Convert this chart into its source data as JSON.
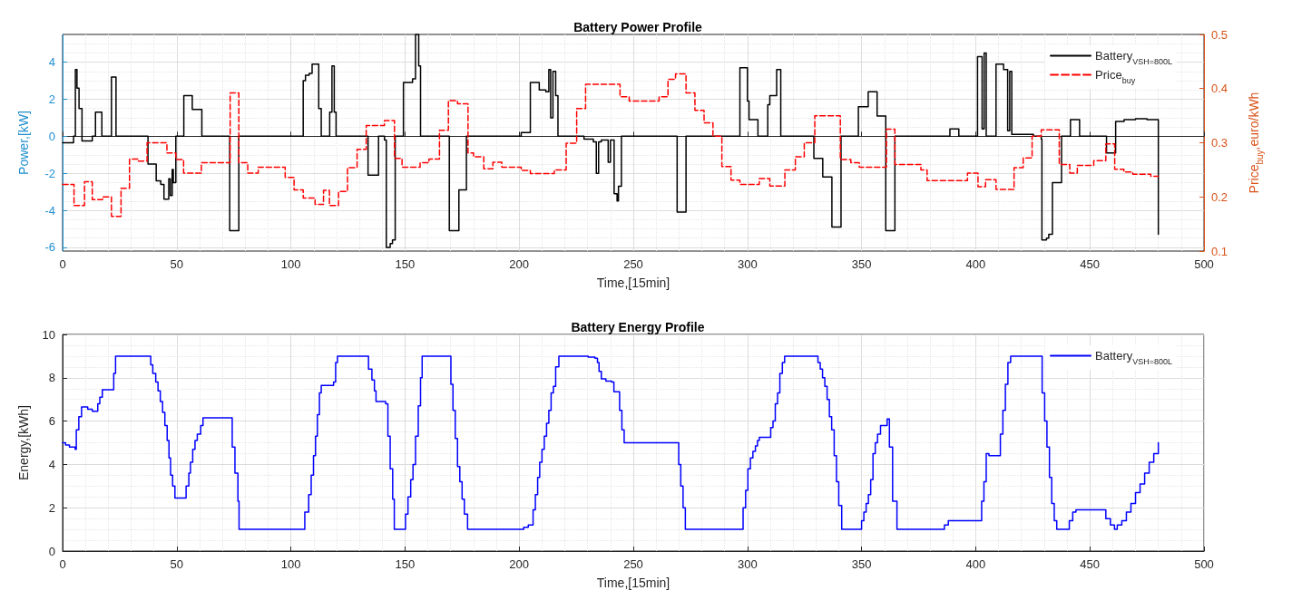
{
  "chart_data": [
    {
      "type": "step",
      "title": "Battery Power Profile",
      "xlabel": "Time,[15min]",
      "ylabel": "Power,[kW]",
      "y2label": "Price$_{buy}$,euro/kWh",
      "xlim": [
        0,
        500
      ],
      "xticks": [
        0,
        50,
        100,
        150,
        200,
        250,
        300,
        350,
        400,
        450,
        500
      ],
      "ylim": [
        -6.2,
        5.5
      ],
      "yticks": [
        -6,
        -4,
        -2,
        0,
        2,
        4
      ],
      "y2lim": [
        0.1,
        0.5
      ],
      "y2ticks": [
        0.1,
        0.2,
        0.3,
        0.4,
        0.5
      ],
      "grid": true,
      "legend": "top right",
      "marker": "none",
      "series": [
        {
          "name": "Battery$_{V}$$_{SH}$$_{=800L}$",
          "color": "#000000",
          "line_style": "solid",
          "x": [
            0,
            4.8,
            5.6,
            6.3,
            7.2,
            8.5,
            13,
            14.4,
            17.2,
            21.4,
            23.4,
            37.4,
            41,
            43,
            44.4,
            46.5,
            47.2,
            48,
            48.5,
            49.6,
            53.1,
            56.8,
            61,
            73.2,
            77.2,
            105.4,
            106.4,
            108,
            109.3,
            112.2,
            113.3,
            117,
            118,
            119,
            119.8,
            133.8,
            138.4,
            141,
            141.8,
            143.5,
            144.5,
            145.7,
            149.3,
            153.3,
            154.6,
            156,
            156.8,
            169.4,
            173.6,
            176.9,
            200.9,
            204.9,
            208.8,
            211.7,
            213,
            213.8,
            214.8,
            216,
            217,
            228.4,
            232.5,
            233.8,
            234.8,
            236,
            239,
            240,
            241.6,
            242.9,
            243.5,
            244.8,
            269.2,
            273.1,
            296.7,
            300,
            300.7,
            304.6,
            308.9,
            309.8,
            312.8,
            314.6,
            329.1,
            333,
            337,
            341,
            348.6,
            352.9,
            356.8,
            360.6,
            364.6,
            388.7,
            392.6,
            400.8,
            402.8,
            403.7,
            404.6,
            408.9,
            412.2,
            414,
            414.9,
            415.8,
            425.3,
            428.7,
            429,
            431,
            432,
            433.6,
            437.6,
            441.5,
            445.5,
            457.3,
            461.3,
            465,
            470,
            475,
            480
          ],
          "values": [
            -0.35,
            0,
            3.6,
            2.6,
            1.5,
            -0.25,
            0,
            1.3,
            0,
            3.2,
            0,
            -1.5,
            -2.4,
            -2.6,
            -3.4,
            -2.3,
            -3.2,
            -1.8,
            -2.5,
            0,
            2.2,
            1.45,
            0,
            -5.1,
            0,
            3.0,
            3.3,
            3.4,
            3.9,
            1.5,
            0,
            1.3,
            3.8,
            1.3,
            0,
            -2.1,
            0,
            -0.2,
            -6.0,
            -5.8,
            -5.6,
            0,
            2.9,
            3.1,
            5.5,
            3.8,
            0,
            -5.1,
            -2.9,
            0,
            0.2,
            2.9,
            2.5,
            2.4,
            3.6,
            1.0,
            3.5,
            2.2,
            0,
            -0.15,
            -0.3,
            -2.0,
            -0.3,
            -0.2,
            -1.4,
            -0.2,
            -3.1,
            -3.5,
            -2.7,
            0,
            -4.1,
            0,
            3.7,
            1.9,
            0.9,
            0,
            1.7,
            2.2,
            3.6,
            0,
            -1.2,
            -2.2,
            -4.9,
            0,
            1.6,
            2.4,
            1.1,
            -5.1,
            0,
            0.4,
            0,
            4.3,
            0.4,
            4.5,
            0,
            3.9,
            3.6,
            0.3,
            3.5,
            0.1,
            0,
            -0.15,
            -5.6,
            -5.5,
            -5.3,
            -2.5,
            0,
            0.9,
            0,
            -0.9,
            0.8,
            0.9,
            0.95,
            0.9,
            -5.3
          ]
        },
        {
          "name": "Price$_{buy}$",
          "color": "#ff0000",
          "line_style": "dashed",
          "axis": "y2",
          "x": [
            0,
            5,
            9.6,
            13,
            17.5,
            21.4,
            25.6,
            29.3,
            33,
            37,
            45.7,
            49.6,
            53,
            60.8,
            73.4,
            77.2,
            81.1,
            85.7,
            97.5,
            101.4,
            105.4,
            110.6,
            114.3,
            116.9,
            120.9,
            124.8,
            129,
            133,
            141,
            145.4,
            148.7,
            156.6,
            160.5,
            165.1,
            169,
            173,
            177.6,
            180,
            184.5,
            188.5,
            192.4,
            200.9,
            204.9,
            215.4,
            220.6,
            225.2,
            229.1,
            244.2,
            248.2,
            261.3,
            265.2,
            268.5,
            273.1,
            277,
            281,
            284.9,
            288.8,
            292.8,
            296.7,
            305.2,
            309.8,
            316.4,
            321,
            324.9,
            329.5,
            340.7,
            345.3,
            349,
            360.9,
            364.6,
            376,
            378.7,
            396.4,
            401,
            404.3,
            408.9,
            416.8,
            420.8,
            424.7,
            428.7,
            436.6,
            441.2,
            444.5,
            451.7,
            457,
            460.9,
            464.9,
            468.8,
            476.7,
            480
          ],
          "values": [
            0.223,
            0.184,
            0.228,
            0.195,
            0.2,
            0.164,
            0.216,
            0.27,
            0.266,
            0.3,
            0.281,
            0.269,
            0.244,
            0.263,
            0.392,
            0.263,
            0.244,
            0.255,
            0.236,
            0.213,
            0.198,
            0.186,
            0.212,
            0.184,
            0.21,
            0.254,
            0.288,
            0.332,
            0.341,
            0.271,
            0.255,
            0.263,
            0.27,
            0.323,
            0.378,
            0.372,
            0.281,
            0.274,
            0.252,
            0.264,
            0.255,
            0.249,
            0.243,
            0.25,
            0.299,
            0.363,
            0.408,
            0.385,
            0.377,
            0.385,
            0.417,
            0.427,
            0.392,
            0.36,
            0.337,
            0.312,
            0.256,
            0.231,
            0.223,
            0.234,
            0.22,
            0.25,
            0.274,
            0.3,
            0.35,
            0.269,
            0.263,
            0.255,
            0.325,
            0.26,
            0.25,
            0.23,
            0.244,
            0.219,
            0.232,
            0.214,
            0.254,
            0.272,
            0.312,
            0.324,
            0.26,
            0.244,
            0.258,
            0.267,
            0.298,
            0.251,
            0.246,
            0.242,
            0.238,
            0.238
          ]
        }
      ]
    },
    {
      "type": "step",
      "title": "Battery Energy Profile",
      "xlabel": "Time,[15min]",
      "ylabel": "Energy,[kWh]",
      "xlim": [
        0,
        500
      ],
      "xticks": [
        0,
        50,
        100,
        150,
        200,
        250,
        300,
        350,
        400,
        450,
        500
      ],
      "ylim": [
        0,
        10
      ],
      "yticks": [
        0,
        2,
        4,
        6,
        8,
        10
      ],
      "grid": true,
      "legend": "top right",
      "marker": "none",
      "series": [
        {
          "name": "Battery$_{V}$$_{SH}$$_{=800L}$",
          "color": "#0000ff",
          "line_style": "solid",
          "x": [
            0,
            1.3,
            3,
            5.5,
            6,
            7.1,
            8.3,
            11,
            13,
            15.4,
            16.3,
            17.4,
            22.4,
            23.2,
            38.6,
            39.5,
            40.8,
            41.8,
            42.8,
            43.8,
            44.8,
            45.8,
            46.6,
            47.3,
            48.2,
            49.2,
            54.1,
            55.3,
            56,
            57,
            58,
            59,
            60.5,
            61.5,
            74.3,
            75.5,
            76.8,
            77.3,
            106.1,
            107.8,
            108.9,
            109.9,
            110.8,
            111.6,
            112.5,
            113.3,
            118.7,
            119.6,
            120.4,
            134,
            135.5,
            136.6,
            137.3,
            141.5,
            142.5,
            143.5,
            144.6,
            145.3,
            150.2,
            151.3,
            152.5,
            153.5,
            154.6,
            155.8,
            156.8,
            157.5,
            170.1,
            171,
            172,
            173,
            174,
            175,
            176,
            177.4,
            202,
            204,
            206.1,
            207.1,
            208.1,
            209,
            210,
            211,
            212,
            213,
            214,
            215,
            216,
            217.4,
            230.2,
            233.2,
            234.3,
            235,
            236,
            238,
            240.5,
            241.5,
            244,
            245,
            246,
            269.9,
            270.8,
            271.8,
            272.8,
            298.1,
            299.2,
            300.2,
            301.3,
            302.4,
            303.5,
            304.4,
            305.2,
            310.2,
            311.2,
            312.2,
            313.2,
            314.2,
            315.3,
            316.3,
            330.9,
            331.9,
            332.9,
            333.9,
            334.9,
            335.9,
            336.9,
            338,
            339,
            340,
            341.3,
            350,
            351,
            352,
            353,
            354,
            355,
            356,
            357,
            358.3,
            361.2,
            362.2,
            363.6,
            365.5,
            386.3,
            388,
            402.6,
            403.6,
            404.6,
            405.8,
            410.8,
            411.9,
            413,
            414.1,
            415.3,
            429.1,
            430.2,
            431.2,
            432.3,
            433.3,
            434.4,
            435.5,
            441,
            442.5,
            443.9,
            457,
            459,
            460.8,
            462,
            464,
            466,
            468,
            470,
            472,
            474,
            476,
            478,
            480
          ],
          "values": [
            5.0,
            4.9,
            4.8,
            4.7,
            5.6,
            6.2,
            6.65,
            6.55,
            6.45,
            6.8,
            7.1,
            7.45,
            8.2,
            9.0,
            8.6,
            8.2,
            7.8,
            7.4,
            6.9,
            6.4,
            5.8,
            5.1,
            4.3,
            3.5,
            3.0,
            2.45,
            3.0,
            3.6,
            4.1,
            4.7,
            5.1,
            5.4,
            5.8,
            6.15,
            4.8,
            3.6,
            2.3,
            1.0,
            1.8,
            2.6,
            3.5,
            4.4,
            5.3,
            6.3,
            7.3,
            7.65,
            7.8,
            8.7,
            9.0,
            8.4,
            7.9,
            7.4,
            6.9,
            6.8,
            5.3,
            3.8,
            2.4,
            1.0,
            1.7,
            2.5,
            3.3,
            4.0,
            5.3,
            6.7,
            8.0,
            9.0,
            7.7,
            6.5,
            5.2,
            3.9,
            3.2,
            2.4,
            1.7,
            1.0,
            1.1,
            1.2,
            1.9,
            2.6,
            3.4,
            4.1,
            4.7,
            5.3,
            5.9,
            6.5,
            7.3,
            7.6,
            8.5,
            9.0,
            8.95,
            8.9,
            8.7,
            8.3,
            7.95,
            7.85,
            7.8,
            7.35,
            6.5,
            5.6,
            5.0,
            4.0,
            3.0,
            2.0,
            1.0,
            2.0,
            2.8,
            3.8,
            4.3,
            4.6,
            4.85,
            5.1,
            5.25,
            5.7,
            6.0,
            6.8,
            7.3,
            8.2,
            8.7,
            9.0,
            8.7,
            8.4,
            8.0,
            7.6,
            7.0,
            6.2,
            5.6,
            4.4,
            3.2,
            2.1,
            1.0,
            1.4,
            1.8,
            2.2,
            2.6,
            3.3,
            4.5,
            5.0,
            5.4,
            5.8,
            6.1,
            4.8,
            2.3,
            1.0,
            1.2,
            1.4,
            2.3,
            3.2,
            4.5,
            4.4,
            5.4,
            6.5,
            7.7,
            8.7,
            9.0,
            7.3,
            6.0,
            4.8,
            3.4,
            2.2,
            1.4,
            1.0,
            1.4,
            1.8,
            1.9,
            1.5,
            1.2,
            1.0,
            1.2,
            1.4,
            1.8,
            2.2,
            2.7,
            3.1,
            3.6,
            4.1,
            4.5,
            5.0
          ]
        }
      ]
    }
  ]
}
